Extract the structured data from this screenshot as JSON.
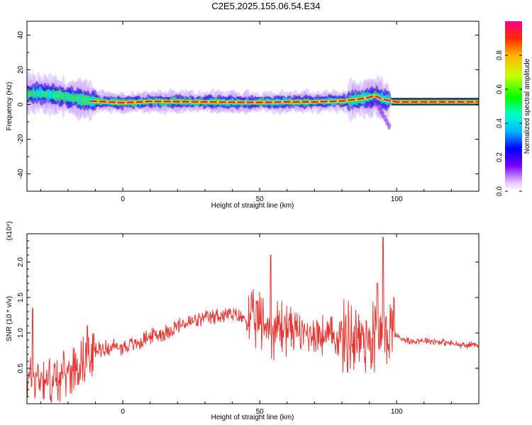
{
  "title": "C2E5.2025.155.06.54.E34",
  "colors": {
    "snr_line": "#e53935",
    "axis": "#000000",
    "ridge": "#e8143c"
  },
  "chart_data": [
    {
      "type": "heatmap",
      "name": "spectrogram",
      "xlabel": "Height of straight line (km)",
      "ylabel": "Frequency (Hz)",
      "xlim": [
        -35,
        130
      ],
      "ylim": [
        -50,
        48
      ],
      "xticks": [
        0,
        50,
        100
      ],
      "yticks": [
        -40,
        -20,
        0,
        20,
        40
      ],
      "ridge_frequency": [
        [
          -35,
          6
        ],
        [
          -30,
          6.5
        ],
        [
          -25,
          5.5
        ],
        [
          -20,
          4.5
        ],
        [
          -15,
          3
        ],
        [
          -12,
          2
        ],
        [
          -5,
          1.5
        ],
        [
          0,
          1
        ],
        [
          10,
          1.8
        ],
        [
          30,
          1.5
        ],
        [
          50,
          1.2
        ],
        [
          60,
          1.5
        ],
        [
          70,
          1.5
        ],
        [
          80,
          2
        ],
        [
          88,
          3.5
        ],
        [
          92,
          5
        ],
        [
          95,
          3
        ],
        [
          100,
          1.5
        ],
        [
          130,
          1.5
        ]
      ],
      "colorbar": {
        "label": "Normalized spectral amplitude",
        "range": [
          0,
          1
        ],
        "ticks": [
          0.0,
          0.2,
          0.4,
          0.6,
          0.8
        ]
      }
    },
    {
      "type": "line",
      "name": "snr",
      "xlabel": "Height of straight line (km)",
      "ylabel": "SNR (10 * v/v)",
      "y_multiplier_label": "(x10⁴)",
      "xlim": [
        -35,
        130
      ],
      "ylim": [
        0,
        2.4
      ],
      "xticks": [
        0,
        50,
        100
      ],
      "yticks": [
        0.5,
        1.0,
        1.5,
        2.0
      ],
      "envelope": [
        [
          -35,
          0.35
        ],
        [
          -30,
          0.4
        ],
        [
          -25,
          0.3
        ],
        [
          -20,
          0.45
        ],
        [
          -15,
          0.6
        ],
        [
          -10,
          0.75
        ],
        [
          -5,
          0.8
        ],
        [
          0,
          0.8
        ],
        [
          5,
          0.85
        ],
        [
          10,
          0.95
        ],
        [
          15,
          1.0
        ],
        [
          20,
          1.1
        ],
        [
          25,
          1.15
        ],
        [
          30,
          1.2
        ],
        [
          35,
          1.25
        ],
        [
          40,
          1.25
        ],
        [
          45,
          1.2
        ],
        [
          50,
          1.15
        ],
        [
          55,
          1.05
        ],
        [
          60,
          1.1
        ],
        [
          65,
          1.0
        ],
        [
          70,
          1.0
        ],
        [
          75,
          0.95
        ],
        [
          80,
          0.95
        ],
        [
          85,
          0.95
        ],
        [
          90,
          0.95
        ],
        [
          95,
          1.0
        ],
        [
          98,
          1.05
        ],
        [
          100,
          0.95
        ],
        [
          105,
          0.88
        ],
        [
          110,
          0.9
        ],
        [
          115,
          0.88
        ],
        [
          120,
          0.85
        ],
        [
          125,
          0.82
        ],
        [
          130,
          0.85
        ]
      ],
      "peaks": [
        [
          -33,
          1.35
        ],
        [
          -13,
          1.1
        ],
        [
          54,
          2.1
        ],
        [
          93,
          1.7
        ],
        [
          95,
          2.35
        ],
        [
          99,
          1.5
        ]
      ]
    }
  ]
}
